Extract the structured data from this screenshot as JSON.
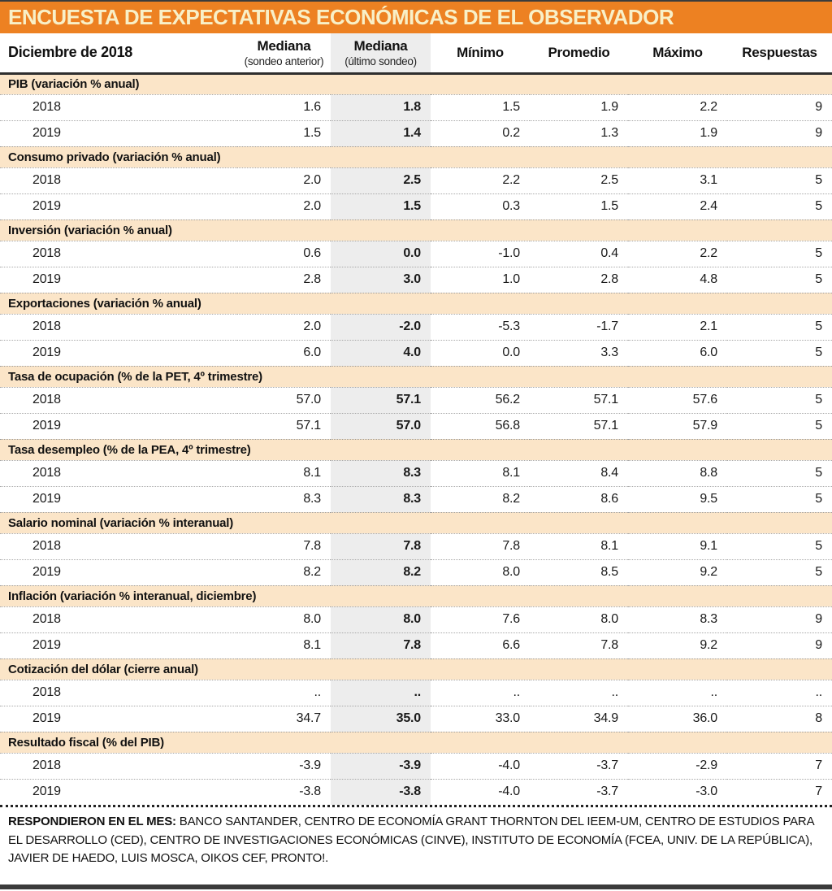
{
  "title": "ENCUESTA DE EXPECTATIVAS ECONÓMICAS DE EL OBSERVADOR",
  "colors": {
    "banner_orange": "#ED8122",
    "banner_text": "#F8F0C8",
    "section_band_peach": "#FBE5C8",
    "highlight_column_gray": "#EDEDED"
  },
  "table": {
    "header": {
      "period": "Diciembre de 2018",
      "columns": [
        {
          "label": "Mediana",
          "sub": "(sondeo anterior)"
        },
        {
          "label": "Mediana",
          "sub": "(último sondeo)"
        },
        {
          "label": "Mínimo",
          "sub": ""
        },
        {
          "label": "Promedio",
          "sub": ""
        },
        {
          "label": "Máximo",
          "sub": ""
        },
        {
          "label": "Respuestas",
          "sub": ""
        }
      ]
    },
    "sections": [
      {
        "name": "PIB (variación % anual)",
        "rows": [
          {
            "year": "2018",
            "values": [
              "1.6",
              "1.8",
              "1.5",
              "1.9",
              "2.2",
              "9"
            ]
          },
          {
            "year": "2019",
            "values": [
              "1.5",
              "1.4",
              "0.2",
              "1.3",
              "1.9",
              "9"
            ]
          }
        ]
      },
      {
        "name": "Consumo privado (variación % anual)",
        "rows": [
          {
            "year": "2018",
            "values": [
              "2.0",
              "2.5",
              "2.2",
              "2.5",
              "3.1",
              "5"
            ]
          },
          {
            "year": "2019",
            "values": [
              "2.0",
              "1.5",
              "0.3",
              "1.5",
              "2.4",
              "5"
            ]
          }
        ]
      },
      {
        "name": "Inversión (variación % anual)",
        "rows": [
          {
            "year": "2018",
            "values": [
              "0.6",
              "0.0",
              "-1.0",
              "0.4",
              "2.2",
              "5"
            ]
          },
          {
            "year": "2019",
            "values": [
              "2.8",
              "3.0",
              "1.0",
              "2.8",
              "4.8",
              "5"
            ]
          }
        ]
      },
      {
        "name": "Exportaciones (variación % anual)",
        "rows": [
          {
            "year": "2018",
            "values": [
              "2.0",
              "-2.0",
              "-5.3",
              "-1.7",
              "2.1",
              "5"
            ]
          },
          {
            "year": "2019",
            "values": [
              "6.0",
              "4.0",
              "0.0",
              "3.3",
              "6.0",
              "5"
            ]
          }
        ]
      },
      {
        "name": "Tasa de ocupación (% de la PET, 4º trimestre)",
        "rows": [
          {
            "year": "2018",
            "values": [
              "57.0",
              "57.1",
              "56.2",
              "57.1",
              "57.6",
              "5"
            ]
          },
          {
            "year": "2019",
            "values": [
              "57.1",
              "57.0",
              "56.8",
              "57.1",
              "57.9",
              "5"
            ]
          }
        ]
      },
      {
        "name": "Tasa desempleo (% de la PEA, 4º trimestre)",
        "rows": [
          {
            "year": "2018",
            "values": [
              "8.1",
              "8.3",
              "8.1",
              "8.4",
              "8.8",
              "5"
            ]
          },
          {
            "year": "2019",
            "values": [
              "8.3",
              "8.3",
              "8.2",
              "8.6",
              "9.5",
              "5"
            ]
          }
        ]
      },
      {
        "name": "Salario nominal (variación % interanual)",
        "rows": [
          {
            "year": "2018",
            "values": [
              "7.8",
              "7.8",
              "7.8",
              "8.1",
              "9.1",
              "5"
            ]
          },
          {
            "year": "2019",
            "values": [
              "8.2",
              "8.2",
              "8.0",
              "8.5",
              "9.2",
              "5"
            ]
          }
        ]
      },
      {
        "name": "Inflación (variación % interanual, diciembre)",
        "rows": [
          {
            "year": "2018",
            "values": [
              "8.0",
              "8.0",
              "7.6",
              "8.0",
              "8.3",
              "9"
            ]
          },
          {
            "year": "2019",
            "values": [
              "8.1",
              "7.8",
              "6.6",
              "7.8",
              "9.2",
              "9"
            ]
          }
        ]
      },
      {
        "name": "Cotización del dólar (cierre anual)",
        "rows": [
          {
            "year": "2018",
            "values": [
              "..",
              "..",
              "..",
              "..",
              "..",
              ".."
            ]
          },
          {
            "year": "2019",
            "values": [
              "34.7",
              "35.0",
              "33.0",
              "34.9",
              "36.0",
              "8"
            ]
          }
        ]
      },
      {
        "name": "Resultado fiscal (% del PIB)",
        "rows": [
          {
            "year": "2018",
            "values": [
              "-3.9",
              "-3.9",
              "-4.0",
              "-3.7",
              "-2.9",
              "7"
            ]
          },
          {
            "year": "2019",
            "values": [
              "-3.8",
              "-3.8",
              "-4.0",
              "-3.7",
              "-3.0",
              "7"
            ]
          }
        ]
      }
    ]
  },
  "footer": {
    "label": "RESPONDIERON EN EL MES:",
    "text": "BANCO SANTANDER, CENTRO DE ECONOMÍA GRANT THORNTON DEL IEEM-UM, CENTRO DE ESTUDIOS PARA EL DESARROLLO (CED), CENTRO DE INVESTIGACIONES ECONÓMICAS (CINVE), INSTITUTO DE ECONOMÍA (FCEA, UNIV. DE LA REPÚBLICA), JAVIER DE HAEDO, LUIS MOSCA, OIKOS CEF, PRONTO!."
  }
}
